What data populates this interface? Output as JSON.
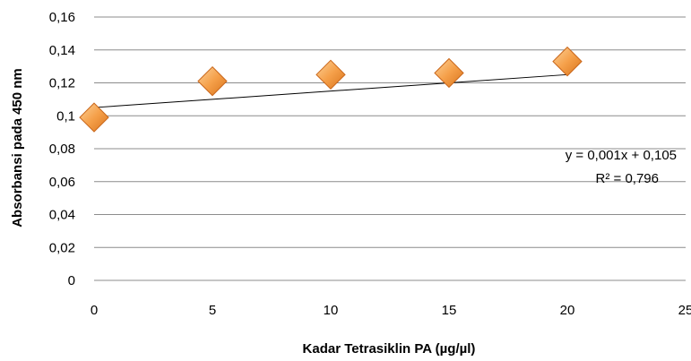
{
  "chart_data": {
    "type": "scatter",
    "xlabel": "Kadar Tetrasiklin PA (µg/µl)",
    "ylabel": "Absorbansi pada 450 nm",
    "xlim": [
      0,
      25
    ],
    "ylim": [
      0,
      0.16
    ],
    "x_ticks": [
      "0",
      "5",
      "10",
      "15",
      "20",
      "25"
    ],
    "y_ticks": [
      "0",
      "0,02",
      "0,04",
      "0,06",
      "0,08",
      "0,1",
      "0,12",
      "0,14",
      "0,16"
    ],
    "grid": "horizontal",
    "marker_color": "#f5a04a",
    "series": [
      {
        "x": [
          0,
          5,
          10,
          15,
          20
        ],
        "y": [
          0.099,
          0.121,
          0.125,
          0.126,
          0.133
        ]
      }
    ],
    "trendline": {
      "type": "linear",
      "slope": 0.001,
      "intercept": 0.105,
      "x_range": [
        0,
        20
      ],
      "equation": "y = 0,001x + 0,105",
      "r_squared": "R² = 0,796"
    }
  }
}
